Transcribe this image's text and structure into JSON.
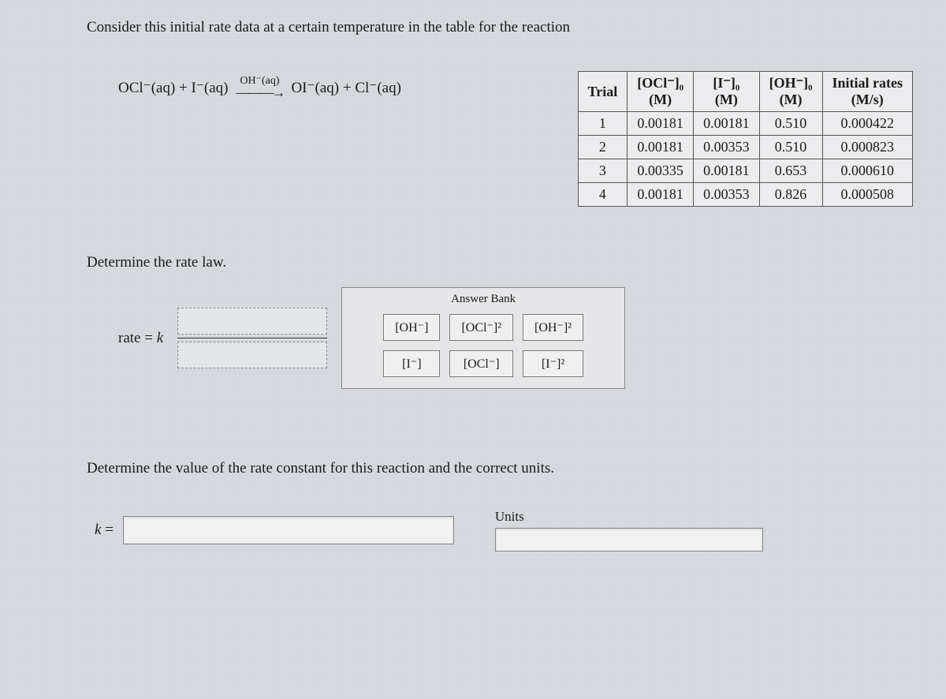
{
  "intro": "Consider this initial rate data at a certain temperature in the table for the reaction",
  "reaction": {
    "lhs": "OCl⁻(aq) + I⁻(aq)",
    "catalyst": "OH⁻(aq)",
    "rhs": "OI⁻(aq) + Cl⁻(aq)"
  },
  "table": {
    "columns": [
      "Trial",
      "[OCl⁻]₀",
      "[I⁻]₀",
      "[OH⁻]₀",
      "Initial rates"
    ],
    "col_units": [
      "",
      "(M)",
      "(M)",
      "(M)",
      "(M/s)"
    ],
    "rows": [
      [
        "1",
        "0.00181",
        "0.00181",
        "0.510",
        "0.000422"
      ],
      [
        "2",
        "0.00181",
        "0.00353",
        "0.510",
        "0.000823"
      ],
      [
        "3",
        "0.00335",
        "0.00181",
        "0.653",
        "0.000610"
      ],
      [
        "4",
        "0.00181",
        "0.00353",
        "0.826",
        "0.000508"
      ]
    ],
    "border_color": "#555",
    "bg": "#ececee"
  },
  "q1": "Determine the rate law.",
  "rate_line": {
    "prefix": "rate = ",
    "kvar": "k"
  },
  "answer_bank": {
    "title": "Answer Bank",
    "tiles": [
      "[OH⁻]",
      "[OCl⁻]²",
      "[OH⁻]²",
      "[I⁻]",
      "[OCl⁻]",
      "[I⁻]²"
    ]
  },
  "q2": "Determine the value of the rate constant for this reaction and the correct units.",
  "k_label": "k =",
  "units_label": "Units",
  "colors": {
    "page_bg": "#d8dce0",
    "text": "#1a1a1a",
    "tile_border": "#777",
    "input_bg": "#f1f1f1"
  },
  "fonts": {
    "body": "Times New Roman",
    "base_size_pt": 14
  }
}
